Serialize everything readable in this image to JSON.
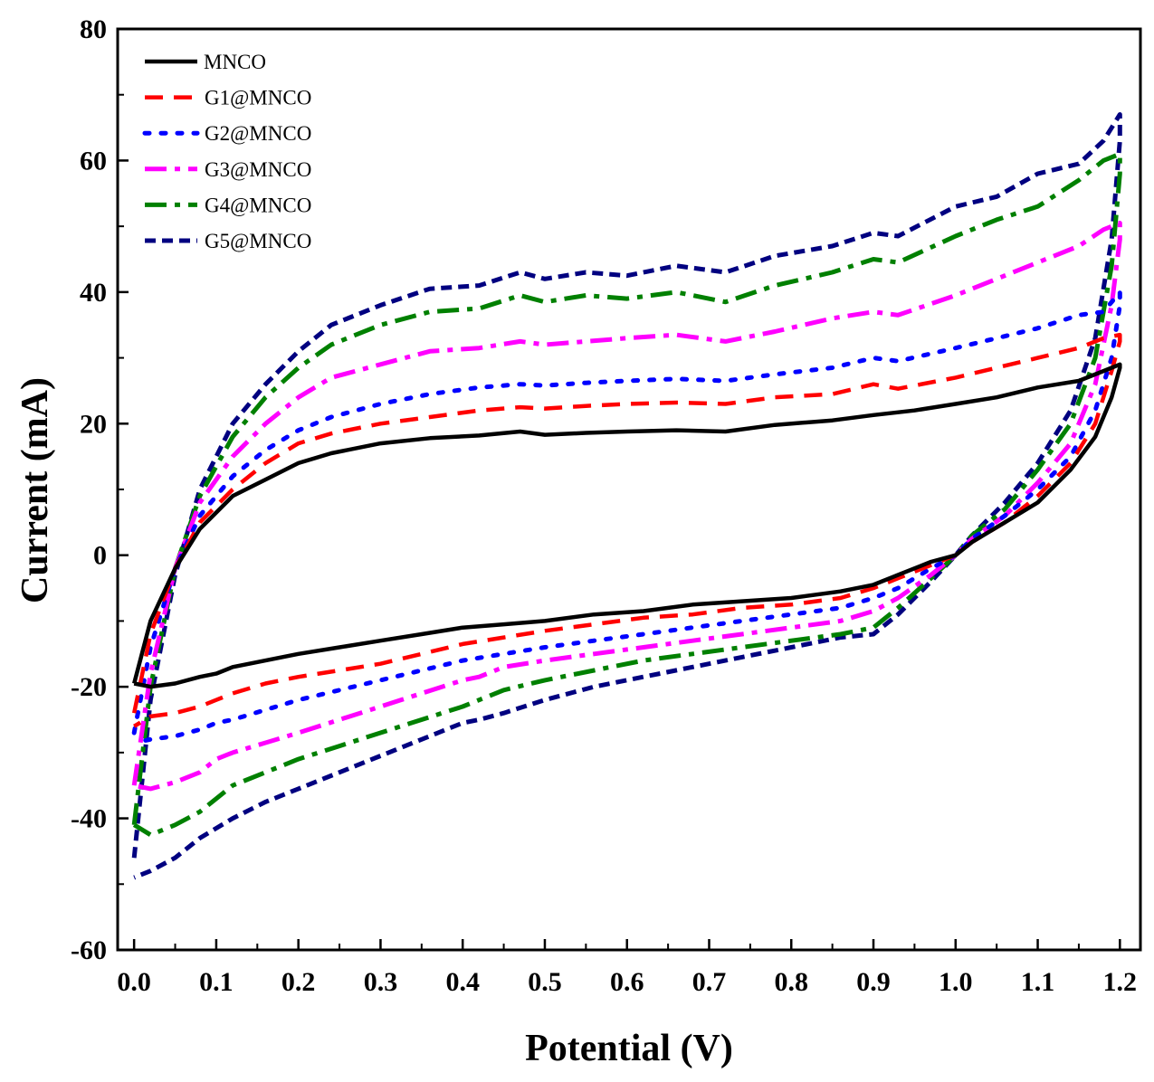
{
  "chart_data": {
    "type": "line",
    "title": "",
    "xlabel": "Potential (V)",
    "ylabel": "Current (mA)",
    "xlim": [
      -0.02,
      1.225
    ],
    "ylim": [
      -60,
      80
    ],
    "xticks": [
      0.0,
      0.1,
      0.2,
      0.3,
      0.4,
      0.5,
      0.6,
      0.7,
      0.8,
      0.9,
      1.0,
      1.1,
      1.2
    ],
    "xtick_labels": [
      "0.0",
      "0.1",
      "0.2",
      "0.3",
      "0.4",
      "0.5",
      "0.6",
      "0.7",
      "0.8",
      "0.9",
      "1.0",
      "1.1",
      "1.2"
    ],
    "yticks": [
      -60,
      -40,
      -20,
      0,
      20,
      40,
      60,
      80
    ],
    "ytick_labels": [
      "-60",
      "-40",
      "-20",
      "0",
      "20",
      "40",
      "60",
      "80"
    ],
    "grid": false,
    "legend_position": "top-left",
    "series": [
      {
        "name": "MNCO",
        "color": "#000000",
        "dash": "solid",
        "x": [
          0.0,
          0.02,
          0.05,
          0.08,
          0.12,
          0.16,
          0.2,
          0.24,
          0.3,
          0.36,
          0.42,
          0.47,
          0.5,
          0.55,
          0.6,
          0.66,
          0.72,
          0.78,
          0.85,
          0.9,
          0.95,
          1.0,
          1.05,
          1.1,
          1.15,
          1.18,
          1.2,
          1.2,
          1.19,
          1.17,
          1.14,
          1.1,
          1.06,
          1.02,
          1.0,
          0.97,
          0.93,
          0.9,
          0.86,
          0.8,
          0.74,
          0.68,
          0.62,
          0.56,
          0.5,
          0.45,
          0.4,
          0.35,
          0.3,
          0.25,
          0.2,
          0.16,
          0.12,
          0.1,
          0.08,
          0.05,
          0.02,
          0.0
        ],
        "y": [
          -19.5,
          -10,
          -2,
          4,
          9,
          11.5,
          14,
          15.5,
          17,
          17.8,
          18.2,
          18.8,
          18.3,
          18.6,
          18.8,
          19,
          18.8,
          19.8,
          20.5,
          21.3,
          22,
          23,
          24,
          25.5,
          26.5,
          28,
          29,
          28.5,
          24,
          18,
          13,
          8,
          5,
          2,
          0,
          -1,
          -3,
          -4.5,
          -5.5,
          -6.5,
          -7,
          -7.5,
          -8.5,
          -9,
          -10,
          -10.5,
          -11,
          -12,
          -13,
          -14,
          -15,
          -16,
          -17,
          -18,
          -18.5,
          -19.5,
          -20,
          -19.5
        ]
      },
      {
        "name": "G1@MNCO",
        "color": "#ff0000",
        "dash": "long-dash",
        "x": [
          0.0,
          0.02,
          0.05,
          0.08,
          0.12,
          0.16,
          0.2,
          0.24,
          0.3,
          0.36,
          0.42,
          0.47,
          0.5,
          0.55,
          0.6,
          0.66,
          0.72,
          0.78,
          0.85,
          0.9,
          0.93,
          1.0,
          1.05,
          1.1,
          1.15,
          1.18,
          1.2,
          1.2,
          1.19,
          1.17,
          1.14,
          1.1,
          1.06,
          1.02,
          1.0,
          0.97,
          0.93,
          0.9,
          0.86,
          0.8,
          0.74,
          0.68,
          0.62,
          0.56,
          0.5,
          0.45,
          0.4,
          0.35,
          0.3,
          0.25,
          0.2,
          0.16,
          0.12,
          0.1,
          0.08,
          0.05,
          0.02,
          0.0
        ],
        "y": [
          -24,
          -12,
          -2,
          5,
          10,
          14,
          17,
          18.5,
          20,
          21,
          22,
          22.5,
          22.3,
          22.7,
          23,
          23.2,
          23,
          24,
          24.5,
          26,
          25.3,
          27,
          28.5,
          30,
          31.5,
          33,
          33.5,
          32.5,
          28,
          20,
          14,
          9,
          5,
          2,
          0,
          -1.5,
          -3.5,
          -5,
          -6.5,
          -7.5,
          -8,
          -9,
          -9.5,
          -10.5,
          -11.5,
          -12.5,
          -13.5,
          -15,
          -16.5,
          -17.5,
          -18.5,
          -19.5,
          -21,
          -22,
          -23,
          -24,
          -24.5,
          -26
        ]
      },
      {
        "name": "G2@MNCO",
        "color": "#0000ff",
        "dash": "dot",
        "x": [
          0.0,
          0.02,
          0.05,
          0.08,
          0.12,
          0.16,
          0.2,
          0.24,
          0.3,
          0.36,
          0.42,
          0.47,
          0.5,
          0.55,
          0.6,
          0.66,
          0.72,
          0.78,
          0.85,
          0.9,
          0.93,
          1.0,
          1.05,
          1.1,
          1.15,
          1.18,
          1.2,
          1.2,
          1.19,
          1.17,
          1.14,
          1.1,
          1.06,
          1.02,
          1.0,
          0.97,
          0.93,
          0.9,
          0.86,
          0.8,
          0.74,
          0.68,
          0.62,
          0.56,
          0.5,
          0.45,
          0.4,
          0.35,
          0.3,
          0.25,
          0.2,
          0.16,
          0.12,
          0.1,
          0.08,
          0.05,
          0.02,
          0.0
        ],
        "y": [
          -27,
          -14,
          -2,
          6,
          12,
          16,
          19,
          21,
          23,
          24.5,
          25.5,
          26,
          25.8,
          26.2,
          26.5,
          26.8,
          26.5,
          27.5,
          28.5,
          30,
          29.5,
          31.5,
          33,
          34.5,
          36.5,
          37,
          40,
          38,
          30,
          22,
          15,
          10,
          6,
          2.5,
          0,
          -2,
          -5,
          -6.5,
          -8,
          -9,
          -10,
          -11,
          -12,
          -13,
          -14,
          -15,
          -16,
          -17.5,
          -19,
          -20.5,
          -22,
          -23.5,
          -25,
          -25.5,
          -26.5,
          -27.5,
          -28,
          -28.5
        ]
      },
      {
        "name": "G3@MNCO",
        "color": "#ff00ff",
        "dash": "dash-dot",
        "x": [
          0.0,
          0.02,
          0.05,
          0.08,
          0.12,
          0.16,
          0.2,
          0.24,
          0.3,
          0.36,
          0.42,
          0.47,
          0.5,
          0.55,
          0.6,
          0.66,
          0.72,
          0.78,
          0.85,
          0.9,
          0.93,
          1.0,
          1.05,
          1.1,
          1.15,
          1.18,
          1.2,
          1.2,
          1.19,
          1.17,
          1.14,
          1.1,
          1.06,
          1.02,
          1.0,
          0.97,
          0.93,
          0.9,
          0.86,
          0.8,
          0.74,
          0.68,
          0.62,
          0.56,
          0.5,
          0.45,
          0.42,
          0.4,
          0.35,
          0.3,
          0.25,
          0.2,
          0.16,
          0.12,
          0.1,
          0.08,
          0.05,
          0.02,
          0.0
        ],
        "y": [
          -35,
          -18,
          -2,
          8,
          15,
          20,
          24,
          27,
          29,
          31,
          31.5,
          32.5,
          32,
          32.5,
          33,
          33.5,
          32.5,
          34,
          36,
          37,
          36.5,
          39.5,
          42,
          44.5,
          47,
          49.5,
          50.5,
          48,
          38,
          26,
          17,
          11,
          6,
          2.5,
          0,
          -3,
          -6.5,
          -8.5,
          -10,
          -11,
          -12,
          -13,
          -14,
          -15,
          -16,
          -17,
          -18.5,
          -19,
          -21,
          -23,
          -25,
          -27,
          -28.5,
          -30,
          -31,
          -33,
          -34.5,
          -35.5,
          -35
        ]
      },
      {
        "name": "G4@MNCO",
        "color": "#008000",
        "dash": "dash-dot",
        "x": [
          0.0,
          0.02,
          0.05,
          0.08,
          0.12,
          0.16,
          0.2,
          0.24,
          0.3,
          0.36,
          0.42,
          0.47,
          0.5,
          0.55,
          0.6,
          0.66,
          0.72,
          0.78,
          0.85,
          0.9,
          0.93,
          1.0,
          1.05,
          1.1,
          1.15,
          1.18,
          1.2,
          1.2,
          1.19,
          1.17,
          1.14,
          1.1,
          1.06,
          1.02,
          1.0,
          0.97,
          0.93,
          0.9,
          0.86,
          0.8,
          0.74,
          0.68,
          0.62,
          0.56,
          0.5,
          0.45,
          0.42,
          0.4,
          0.35,
          0.3,
          0.25,
          0.2,
          0.16,
          0.12,
          0.1,
          0.08,
          0.05,
          0.02,
          0.0
        ],
        "y": [
          -41,
          -20,
          -2,
          9,
          18,
          24,
          28.5,
          32,
          35,
          37,
          37.5,
          39.5,
          38.5,
          39.5,
          39,
          40,
          38.5,
          41,
          43,
          45,
          44.5,
          48.5,
          51,
          53,
          57,
          60,
          61,
          58,
          44,
          30,
          20,
          13,
          7,
          3,
          0,
          -3.5,
          -8,
          -11,
          -12,
          -13,
          -14,
          -15,
          -16,
          -17.5,
          -19,
          -20.5,
          -22,
          -23,
          -25,
          -27,
          -29,
          -31,
          -33,
          -35,
          -37,
          -39,
          -41,
          -42.5,
          -41
        ]
      },
      {
        "name": "G5@MNCO",
        "color": "#000080",
        "dash": "dash",
        "x": [
          0.0,
          0.02,
          0.05,
          0.08,
          0.12,
          0.16,
          0.2,
          0.24,
          0.3,
          0.36,
          0.42,
          0.47,
          0.5,
          0.55,
          0.6,
          0.66,
          0.72,
          0.78,
          0.85,
          0.9,
          0.93,
          1.0,
          1.05,
          1.1,
          1.15,
          1.18,
          1.2,
          1.2,
          1.19,
          1.17,
          1.14,
          1.1,
          1.06,
          1.02,
          1.0,
          0.97,
          0.93,
          0.9,
          0.86,
          0.8,
          0.74,
          0.68,
          0.62,
          0.56,
          0.5,
          0.45,
          0.42,
          0.4,
          0.35,
          0.3,
          0.25,
          0.2,
          0.16,
          0.12,
          0.1,
          0.08,
          0.05,
          0.02,
          0.0
        ],
        "y": [
          -46,
          -22,
          -3,
          10,
          20,
          26,
          31,
          35,
          38,
          40.5,
          41,
          43,
          42,
          43,
          42.5,
          44,
          43,
          45.5,
          47,
          49,
          48.5,
          53,
          54.5,
          58,
          59.5,
          63,
          67,
          63,
          48,
          33,
          22,
          14,
          8,
          3,
          0,
          -4,
          -9,
          -12,
          -12.5,
          -14,
          -15.5,
          -17,
          -18.5,
          -20,
          -22,
          -24,
          -25,
          -25.5,
          -28,
          -30.5,
          -33,
          -35.5,
          -37.5,
          -40,
          -41.5,
          -43,
          -46,
          -48,
          -49
        ]
      }
    ]
  }
}
